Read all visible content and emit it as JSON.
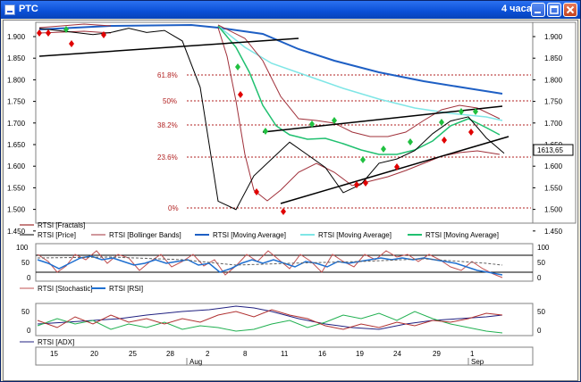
{
  "window": {
    "title": "РТС",
    "timeframe": "4 часа",
    "colors": {
      "titlebar": "#0a4fd6",
      "frame": "#ece9d8"
    }
  },
  "main_panel": {
    "price_ticks": [
      "1.900",
      "1.850",
      "1.800",
      "1.750",
      "1.700",
      "1.650",
      "1.600",
      "1.550",
      "1.500",
      "1.450"
    ],
    "last_price": "1613,65",
    "fib_levels": [
      "61.8%",
      "50%",
      "38.2%",
      "23.6%",
      "0%"
    ],
    "legend": [
      {
        "label": "RTSI [Fractals]",
        "color": "#8b0000"
      },
      {
        "label": "RTSI [Price]",
        "color": "#000000"
      },
      {
        "label": "RTSI [Bollinger Bands]",
        "color": "#a0303a"
      },
      {
        "label": "RTSI [Moving Average]",
        "color": "#1e5fc4"
      },
      {
        "label": "RTSI [Moving Average]",
        "color": "#7fe6e6"
      },
      {
        "label": "RTSI [Moving Average]",
        "color": "#20c070"
      }
    ]
  },
  "oscillator_panel": {
    "ticks": [
      "100",
      "50",
      "0"
    ],
    "legend": [
      {
        "label": "RTSI [Stochastic]",
        "color": "#c05050"
      },
      {
        "label": "RTSI [RSI]",
        "color": "#1e6fd0"
      }
    ]
  },
  "adx_panel": {
    "ticks": [
      "50",
      "0"
    ],
    "legend": [
      {
        "label": "RTSI [ADX]",
        "color": "#202080"
      }
    ]
  },
  "time_axis": {
    "days": [
      "15",
      "20",
      "25",
      "28",
      "2",
      "8",
      "11",
      "16",
      "19",
      "24",
      "29",
      "1"
    ],
    "months": [
      "Aug",
      "Sep"
    ]
  },
  "chart_data": {
    "type": "line",
    "title": "",
    "xlabel": "",
    "ylabel": "",
    "ylim": [
      1450,
      1920
    ],
    "series": [
      {
        "name": "RTSI [Price]",
        "values": [
          1910,
          1905,
          1900,
          1895,
          1900,
          1910,
          1900,
          1905,
          1880,
          1770,
          1500,
          1480,
          1560,
          1600,
          1640,
          1610,
          1580,
          1520,
          1540,
          1590,
          1600,
          1620,
          1660,
          1690,
          1700,
          1650,
          1613.65
        ]
      }
    ],
    "fibonacci": {
      "levels": [
        "61.8%",
        "50%",
        "38.2%",
        "23.6%",
        "0%"
      ],
      "high": 1920,
      "low": 1465
    },
    "grid": false,
    "legend_position": "bottom"
  }
}
